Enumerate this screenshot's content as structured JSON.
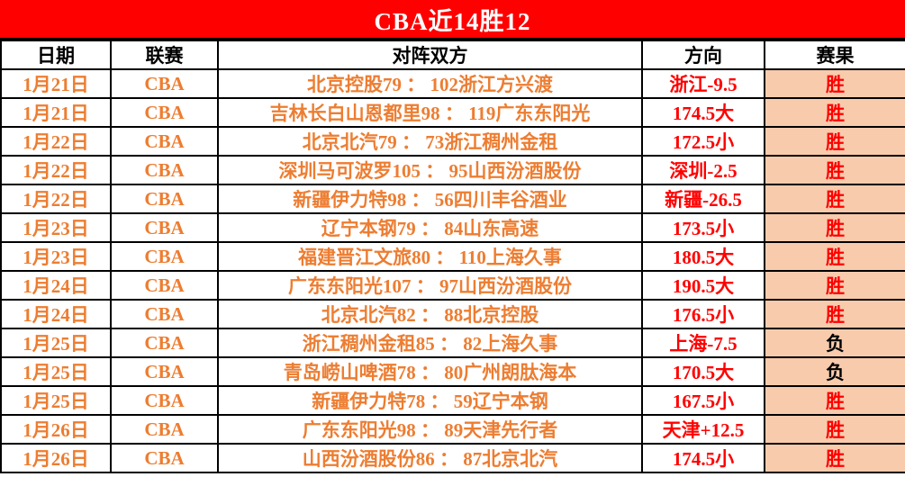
{
  "title": "CBA近14胜12",
  "colors": {
    "title_bg": "#FF0000",
    "title_text": "#FFFFFF",
    "data_orange": "#ED7D31",
    "direction_red": "#FF0000",
    "result_bg_peach": "#F8CBAD",
    "win_text": "#FF0000",
    "loss_text": "#000000",
    "border": "#000000"
  },
  "chart_data": {
    "type": "table",
    "title": "CBA近14胜12",
    "columns": [
      "日期",
      "联赛",
      "对阵双方",
      "方向",
      "赛果"
    ],
    "win_label": "胜",
    "loss_label": "负",
    "rows": [
      {
        "date": "1月21日",
        "league": "CBA",
        "matchup": "北京控股79 ： 102浙江方兴渡",
        "direction": "浙江-9.5",
        "result": "胜"
      },
      {
        "date": "1月21日",
        "league": "CBA",
        "matchup": "吉林长白山恩都里98 ： 119广东东阳光",
        "direction": "174.5大",
        "result": "胜"
      },
      {
        "date": "1月22日",
        "league": "CBA",
        "matchup": "北京北汽79 ： 73浙江稠州金租",
        "direction": "172.5小",
        "result": "胜"
      },
      {
        "date": "1月22日",
        "league": "CBA",
        "matchup": "深圳马可波罗105 ： 95山西汾酒股份",
        "direction": "深圳-2.5",
        "result": "胜"
      },
      {
        "date": "1月22日",
        "league": "CBA",
        "matchup": "新疆伊力特98 ： 56四川丰谷酒业",
        "direction": "新疆-26.5",
        "result": "胜"
      },
      {
        "date": "1月23日",
        "league": "CBA",
        "matchup": "辽宁本钢79 ： 84山东高速",
        "direction": "173.5小",
        "result": "胜"
      },
      {
        "date": "1月23日",
        "league": "CBA",
        "matchup": "福建晋江文旅80 ： 110上海久事",
        "direction": "180.5大",
        "result": "胜"
      },
      {
        "date": "1月24日",
        "league": "CBA",
        "matchup": "广东东阳光107 ： 97山西汾酒股份",
        "direction": "190.5大",
        "result": "胜"
      },
      {
        "date": "1月24日",
        "league": "CBA",
        "matchup": "北京北汽82 ： 88北京控股",
        "direction": "176.5小",
        "result": "胜"
      },
      {
        "date": "1月25日",
        "league": "CBA",
        "matchup": "浙江稠州金租85 ： 82上海久事",
        "direction": "上海-7.5",
        "result": "负"
      },
      {
        "date": "1月25日",
        "league": "CBA",
        "matchup": "青岛崂山啤酒78 ： 80广州朗肽海本",
        "direction": "170.5大",
        "result": "负"
      },
      {
        "date": "1月25日",
        "league": "CBA",
        "matchup": "新疆伊力特78 ： 59辽宁本钢",
        "direction": "167.5小",
        "result": "胜"
      },
      {
        "date": "1月26日",
        "league": "CBA",
        "matchup": "广东东阳光98 ： 89天津先行者",
        "direction": "天津+12.5",
        "result": "胜"
      },
      {
        "date": "1月26日",
        "league": "CBA",
        "matchup": "山西汾酒股份86 ： 87北京北汽",
        "direction": "174.5小",
        "result": "胜"
      }
    ]
  }
}
